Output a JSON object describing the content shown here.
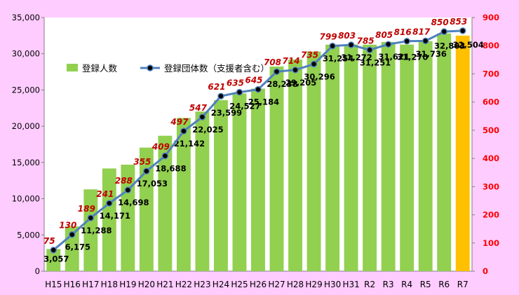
{
  "chart_data": {
    "type": "bar+line",
    "categories": [
      "H15",
      "H16",
      "H17",
      "H18",
      "H19",
      "H20",
      "H21",
      "H22",
      "H23",
      "H24",
      "H25",
      "H26",
      "H27",
      "H28",
      "H29",
      "H30",
      "H31",
      "R2",
      "R3",
      "R4",
      "R5",
      "R6",
      "R7"
    ],
    "series": [
      {
        "name": "登録人数",
        "type": "bar",
        "axis": "left",
        "values": [
          3057,
          6175,
          11288,
          14171,
          14698,
          17053,
          18688,
          21142,
          22025,
          23599,
          24527,
          25184,
          28238,
          29205,
          30296,
          31254,
          31272,
          31251,
          31621,
          31270,
          31736,
          32803,
          32504
        ],
        "labels": [
          "3,057",
          "6,175",
          "11,288",
          "14,171",
          "14,698",
          "17,053",
          "18,688",
          "21,142",
          "22,025",
          "23,599",
          "24,527",
          "25,184",
          "28,238",
          "29,205",
          "30,296",
          "31,254",
          "31,272",
          "31,251",
          "31,621",
          "31,270",
          "31,736",
          "32,803",
          "32,504"
        ]
      },
      {
        "name": "登録団体数（支援者含む）",
        "type": "line",
        "axis": "right",
        "values": [
          75,
          130,
          189,
          241,
          288,
          355,
          409,
          497,
          547,
          621,
          635,
          645,
          708,
          714,
          735,
          799,
          803,
          785,
          805,
          816,
          817,
          850,
          853
        ]
      }
    ],
    "left_axis": {
      "min": 0,
      "max": 35000,
      "ticks": [
        "0",
        "5,000",
        "10,000",
        "15,000",
        "20,000",
        "25,000",
        "30,000",
        "35,000"
      ],
      "tick_values": [
        0,
        5000,
        10000,
        15000,
        20000,
        25000,
        30000,
        35000
      ]
    },
    "right_axis": {
      "min": 0,
      "max": 900,
      "ticks": [
        "0",
        "100",
        "200",
        "300",
        "400",
        "500",
        "600",
        "700",
        "800",
        "900"
      ],
      "tick_values": [
        0,
        100,
        200,
        300,
        400,
        500,
        600,
        700,
        800,
        900
      ]
    },
    "legend": {
      "position": "top-left",
      "items": [
        "登録人数",
        "登録団体数（支援者含む）"
      ]
    },
    "grid": false,
    "colors": {
      "bar": "#92d050",
      "bar_highlight": "#ffc000",
      "line": "#4f81bd",
      "marker": "#000000",
      "line_label": "#c00000",
      "right_axis": "#ff0000",
      "background": "#ffccff",
      "plot_background": "#ffffff"
    },
    "highlight_last_bar": true
  }
}
